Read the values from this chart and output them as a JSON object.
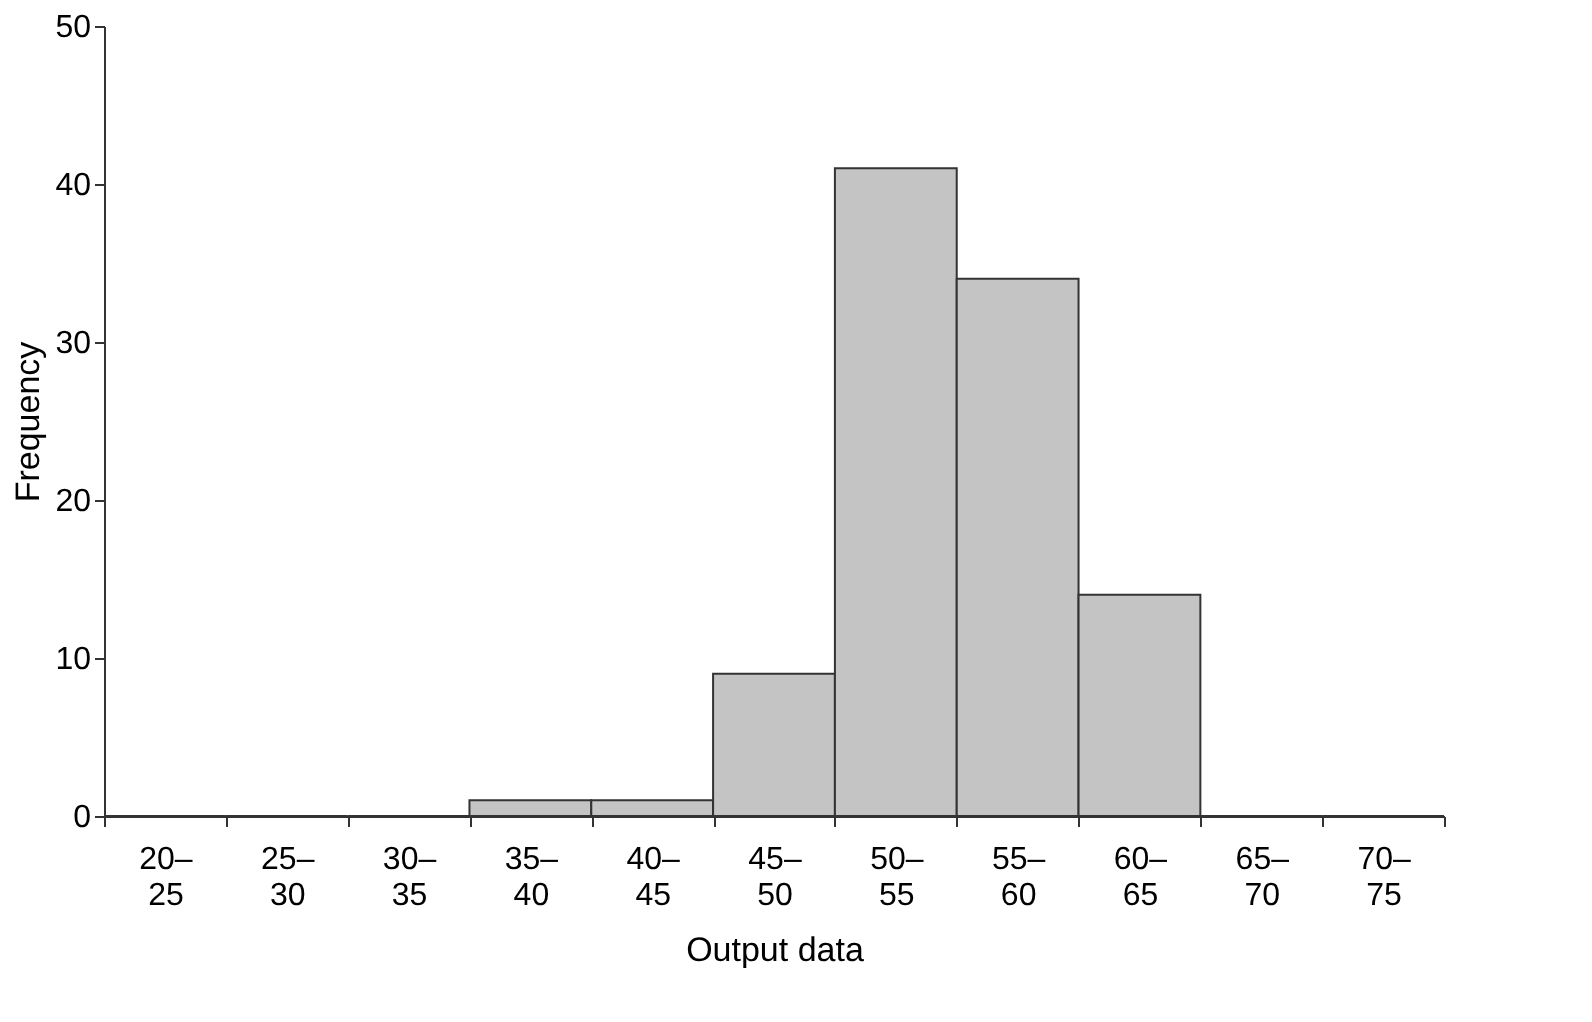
{
  "chart_data": {
    "type": "bar",
    "xlabel": "Output data",
    "ylabel": "Frequency",
    "categories": [
      "20–25",
      "25–30",
      "30–35",
      "35–40",
      "40–45",
      "45–50",
      "50–55",
      "55–60",
      "60–65",
      "65–70",
      "70–75"
    ],
    "values": [
      0,
      0,
      0,
      1,
      1,
      9,
      41,
      34,
      14,
      0,
      0
    ],
    "color": "#c4c4c4",
    "ylim": [
      0,
      50
    ],
    "yticks": [
      0,
      10,
      20,
      30,
      40,
      50
    ],
    "grid": false
  }
}
